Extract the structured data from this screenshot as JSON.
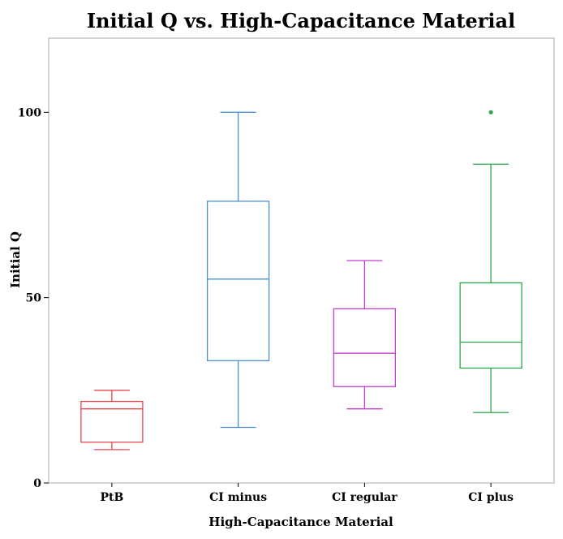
{
  "chart_data": {
    "type": "boxplot",
    "title": "Initial Q vs. High-Capacitance Material",
    "xlabel": "High-Capacitance Material",
    "ylabel": "Initial Q",
    "ylim": [
      0,
      120
    ],
    "yticks": [
      0,
      50,
      100
    ],
    "categories": [
      "PtB",
      "CI minus",
      "CI regular",
      "CI plus"
    ],
    "series": [
      {
        "name": "PtB",
        "color": "#e8474f",
        "min": 9,
        "q1": 11,
        "median": 20,
        "q3": 22,
        "max": 25,
        "outliers": []
      },
      {
        "name": "CI minus",
        "color": "#4a90d9",
        "min": 15,
        "q1": 33,
        "median": 55,
        "q3": 76,
        "max": 100,
        "outliers": []
      },
      {
        "name": "CI regular",
        "color": "#c43fd1",
        "min": 20,
        "q1": 26,
        "median": 35,
        "q3": 47,
        "max": 60,
        "outliers": []
      },
      {
        "name": "CI plus",
        "color": "#2aa84a",
        "min": 19,
        "q1": 31,
        "median": 38,
        "q3": 54,
        "max": 86,
        "outliers": [
          100
        ]
      }
    ]
  }
}
